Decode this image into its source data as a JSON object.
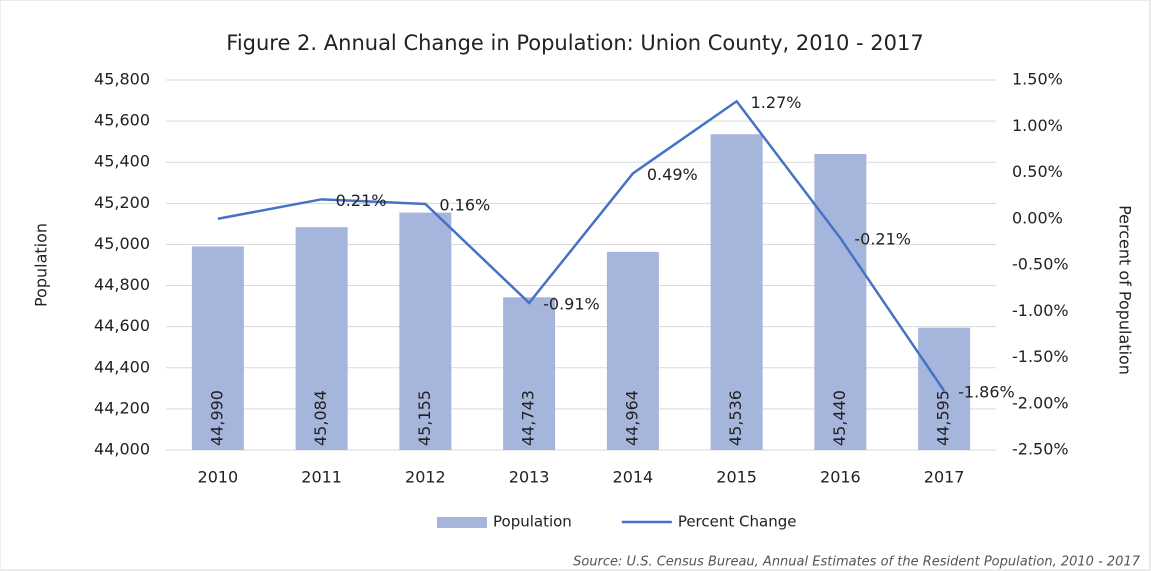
{
  "chart_data": {
    "type": "bar",
    "title": "Figure 2. Annual Change in Population: Union County, 2010 - 2017",
    "y_label": "Population",
    "y2_label": "Percent of Population",
    "source": "Source: U.S. Census Bureau, Annual Estimates of the Resident Population, 2010 - 2017",
    "categories": [
      "2010",
      "2011",
      "2012",
      "2013",
      "2014",
      "2015",
      "2016",
      "2017"
    ],
    "series": [
      {
        "name": "Population",
        "type": "bar",
        "color": "#a6b5dc",
        "values": [
          44990,
          45084,
          45155,
          44743,
          44964,
          45536,
          45440,
          44595
        ],
        "value_labels": [
          "44,990",
          "45,084",
          "45,155",
          "44,743",
          "44,964",
          "45,536",
          "45,440",
          "44,595"
        ]
      },
      {
        "name": "Percent Change",
        "type": "line",
        "axis": "y2",
        "color": "#4472c4",
        "values": [
          0,
          0.21,
          0.16,
          -0.91,
          0.49,
          1.27,
          -0.21,
          -1.86
        ],
        "value_labels": [
          null,
          "0.21%",
          "0.16%",
          "-0.91%",
          "0.49%",
          "1.27%",
          "-0.21%",
          "-1.86%"
        ]
      }
    ],
    "ylim": [
      44000,
      45800
    ],
    "yticks": [
      {
        "value": 44000,
        "label": "44,000"
      },
      {
        "value": 44200,
        "label": "44,200"
      },
      {
        "value": 44400,
        "label": "44,400"
      },
      {
        "value": 44600,
        "label": "44,600"
      },
      {
        "value": 44800,
        "label": "44,800"
      },
      {
        "value": 45000,
        "label": "45,000"
      },
      {
        "value": 45200,
        "label": "45,200"
      },
      {
        "value": 45400,
        "label": "45,400"
      },
      {
        "value": 45600,
        "label": "45,600"
      },
      {
        "value": 45800,
        "label": "45,800"
      }
    ],
    "y2lim": [
      -2.5,
      1.5
    ],
    "y2ticks": [
      {
        "value": -2.5,
        "label": "-2.50%"
      },
      {
        "value": -2,
        "label": "-2.00%"
      },
      {
        "value": -1.5,
        "label": "-1.50%"
      },
      {
        "value": -1,
        "label": "-1.00%"
      },
      {
        "value": -0.5,
        "label": "-0.50%"
      },
      {
        "value": 0,
        "label": "0.00%"
      },
      {
        "value": 0.5,
        "label": "0.50%"
      },
      {
        "value": 1,
        "label": "1.00%"
      },
      {
        "value": 1.5,
        "label": "1.50%"
      }
    ],
    "grid": true,
    "legend": "bottom"
  }
}
